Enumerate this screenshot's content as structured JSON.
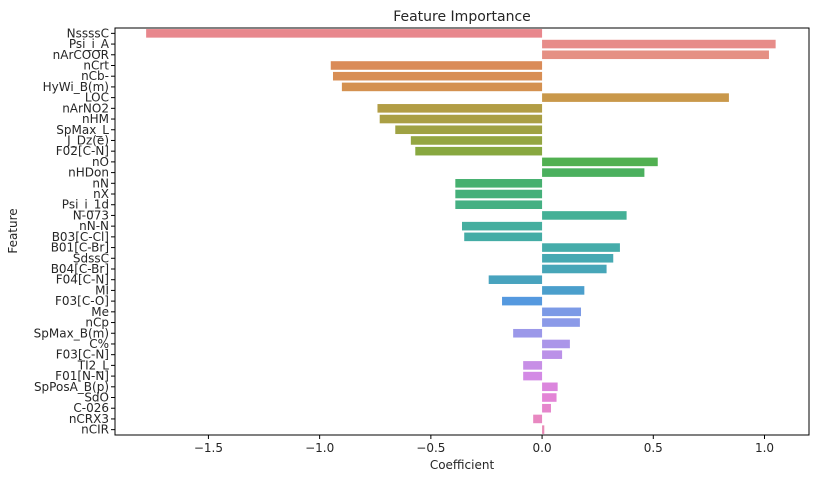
{
  "chart_data": {
    "type": "bar",
    "orientation": "horizontal",
    "title": "Feature Importance",
    "xlabel": "Coefficient",
    "ylabel": "Feature",
    "xlim": [
      -1.92,
      1.2
    ],
    "xticks": [
      -1.5,
      -1.0,
      -0.5,
      0.0,
      0.5,
      1.0
    ],
    "xtick_labels": [
      "−1.5",
      "−1.0",
      "−0.5",
      "0.0",
      "0.5",
      "1.0"
    ],
    "grid": false,
    "categories": [
      "NssssC",
      "Psi_i_A",
      "nArCOOR",
      "nCrt",
      "nCb-",
      "HyWi_B(m)",
      "LOC",
      "nArNO2",
      "nHM",
      "SpMax_L",
      "J_Dz(e)",
      "F02[C-N]",
      "nO",
      "nHDon",
      "nN",
      "nX",
      "Psi_i_1d",
      "N-073",
      "nN-N",
      "B03[C-Cl]",
      "B01[C-Br]",
      "SdssC",
      "B04[C-Br]",
      "F04[C-N]",
      "MI",
      "F03[C-O]",
      "Me",
      "nCp",
      "SpMax_B(m)",
      "C%",
      "F03[C-N]",
      "TI2_L",
      "F01[N-N]",
      "SpPosA_B(p)",
      "SdO",
      "C-026",
      "nCRX3",
      "nCIR"
    ],
    "values": [
      -1.78,
      1.05,
      1.02,
      -0.95,
      -0.94,
      -0.9,
      0.84,
      -0.74,
      -0.73,
      -0.66,
      -0.59,
      -0.57,
      0.52,
      0.46,
      -0.39,
      -0.39,
      -0.39,
      0.38,
      -0.36,
      -0.35,
      0.35,
      0.32,
      0.29,
      -0.24,
      0.19,
      -0.18,
      0.175,
      0.17,
      -0.13,
      0.125,
      0.09,
      -0.085,
      -0.085,
      0.07,
      0.065,
      0.04,
      -0.04,
      0.01
    ],
    "colors": [
      "#e8878d",
      "#e78c89",
      "#e59084",
      "#da8b58",
      "#d88e54",
      "#d49150",
      "#c9984a",
      "#b29d45",
      "#aa9f44",
      "#9fa243",
      "#94a642",
      "#88a840",
      "#51b051",
      "#4bb05e",
      "#46b06f",
      "#45b07a",
      "#45b083",
      "#44b096",
      "#45ae9f",
      "#44aca5",
      "#45acaa",
      "#46a9b2",
      "#47a6b8",
      "#48a3be",
      "#4b9fcc",
      "#5599df",
      "#7c9ae6",
      "#8b9ae8",
      "#9b98e9",
      "#ab96e9",
      "#bb91e8",
      "#c78fe6",
      "#d38ae5",
      "#db86dd",
      "#e384d6",
      "#e586cc",
      "#e888c1",
      "#e98ab6"
    ]
  }
}
